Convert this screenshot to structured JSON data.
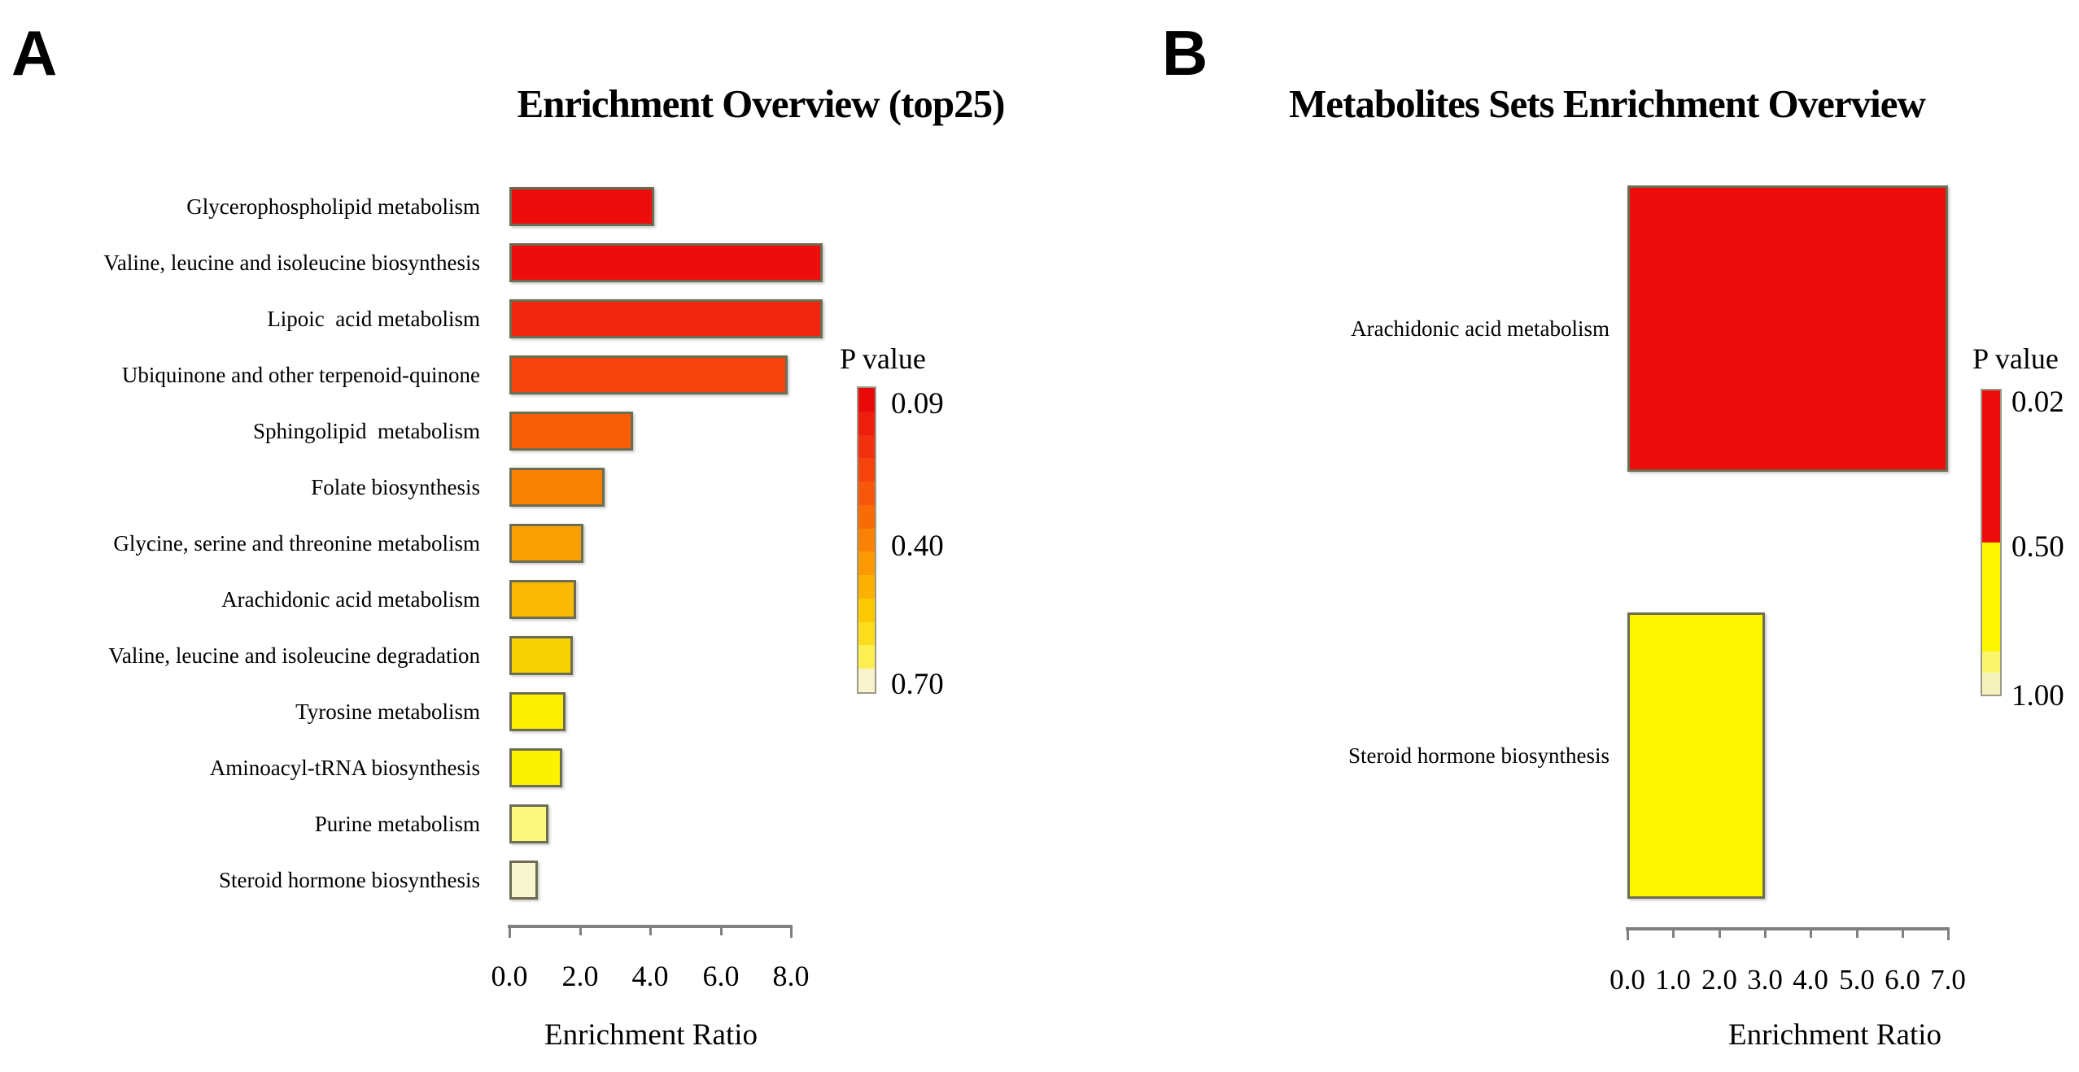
{
  "panels": [
    {
      "letter": "A",
      "title": "Enrichment Overview (top25)",
      "axis": {
        "ticks": [
          "0.0",
          "2.0",
          "4.0",
          "6.0",
          "8.0"
        ],
        "label": "Enrichment Ratio",
        "max": 8
      },
      "legend": {
        "title": "P value",
        "labels": [
          "0.09",
          "0.40",
          "0.70"
        ],
        "band_colors": [
          "#e80a0b",
          "#ee1d0d",
          "#f1300f",
          "#f4430d",
          "#f6570b",
          "#f86c08",
          "#f98206",
          "#fa9904",
          "#fbb004",
          "#fcc903",
          "#fcdd1e",
          "#fdef52",
          "#f8f3cd"
        ]
      },
      "bars": [
        {
          "label": "Glycerophospholipid metabolism",
          "value": 4.1,
          "color": "#ee0d0d"
        },
        {
          "label": "Valine, leucine and isoleucine biosynthesis",
          "value": 8.9,
          "color": "#ee0d0d"
        },
        {
          "label": "Lipoic  acid metabolism",
          "value": 8.9,
          "color": "#f0260f"
        },
        {
          "label": "Ubiquinone and other terpenoid-quinone",
          "value": 7.9,
          "color": "#f6420b"
        },
        {
          "label": "Sphingolipid  metabolism",
          "value": 3.5,
          "color": "#f75e08"
        },
        {
          "label": "Folate biosynthesis",
          "value": 2.7,
          "color": "#f98205"
        },
        {
          "label": "Glycine, serine and threonine metabolism",
          "value": 2.1,
          "color": "#f9a104"
        },
        {
          "label": "Arachidonic acid metabolism",
          "value": 1.9,
          "color": "#fab902"
        },
        {
          "label": "Valine, leucine and isoleucine degradation",
          "value": 1.8,
          "color": "#f8d303"
        },
        {
          "label": "Tyrosine metabolism",
          "value": 1.6,
          "color": "#fcf000"
        },
        {
          "label": "Aminoacyl-tRNA biosynthesis",
          "value": 1.5,
          "color": "#fbf201"
        },
        {
          "label": "Purine metabolism",
          "value": 1.1,
          "color": "#fbf87d"
        },
        {
          "label": "Steroid hormone biosynthesis",
          "value": 0.8,
          "color": "#f8f6cf"
        }
      ]
    },
    {
      "letter": "B",
      "title": "Metabolites Sets Enrichment Overview",
      "axis": {
        "ticks": [
          "0.0",
          "1.0",
          "2.0",
          "3.0",
          "4.0",
          "5.0",
          "6.0",
          "7.0"
        ],
        "label": "Enrichment Ratio",
        "max": 7
      },
      "legend": {
        "title": "P value",
        "labels": [
          "0.02",
          "0.50",
          "1.00"
        ],
        "band_colors": [
          "#ee0d0d",
          "#ee0d0d",
          "#ee0d0d",
          "#ee0d0d",
          "#ee0d0d",
          "#ee0d0d",
          "#ee0d0d",
          "#fcf400",
          "#fcf400",
          "#fcf400",
          "#fcf400",
          "#fcf400",
          "#fbf66e",
          "#f6f2bb"
        ]
      },
      "bars": [
        {
          "label": "Arachidonic acid metabolism",
          "value": 7.0,
          "color": "#ee0d0d"
        },
        {
          "label": "Steroid hormone biosynthesis",
          "value": 3.0,
          "color": "#fcf400"
        }
      ]
    }
  ],
  "chart_data": [
    {
      "type": "bar",
      "orientation": "horizontal",
      "title": "Enrichment Overview (top25)",
      "xlabel": "Enrichment Ratio",
      "xlim": [
        0.0,
        8.0
      ],
      "x_ticks": [
        0.0,
        2.0,
        4.0,
        6.0,
        8.0
      ],
      "grid": false,
      "colorbar": {
        "title": "P value",
        "ticks": [
          0.09,
          0.4,
          0.7
        ],
        "top_color": "#e80a0b",
        "bottom_color": "#f8f3cd"
      },
      "categories": [
        "Glycerophospholipid metabolism",
        "Valine, leucine and isoleucine biosynthesis",
        "Lipoic  acid metabolism",
        "Ubiquinone and other terpenoid-quinone",
        "Sphingolipid  metabolism",
        "Folate biosynthesis",
        "Glycine, serine and threonine metabolism",
        "Arachidonic acid metabolism",
        "Valine, leucine and isoleucine degradation",
        "Tyrosine metabolism",
        "Aminoacyl-tRNA biosynthesis",
        "Purine metabolism",
        "Steroid hormone biosynthesis"
      ],
      "values": [
        4.1,
        8.9,
        8.9,
        7.9,
        3.5,
        2.7,
        2.1,
        1.9,
        1.8,
        1.6,
        1.5,
        1.1,
        0.8
      ],
      "bar_colors": [
        "#ee0d0d",
        "#ee0d0d",
        "#f0260f",
        "#f6420b",
        "#f75e08",
        "#f98205",
        "#f9a104",
        "#fab902",
        "#f8d303",
        "#fcf000",
        "#fbf201",
        "#fbf87d",
        "#f8f6cf"
      ]
    },
    {
      "type": "bar",
      "orientation": "horizontal",
      "title": "Metabolites Sets Enrichment Overview",
      "xlabel": "Enrichment Ratio",
      "xlim": [
        0.0,
        7.0
      ],
      "x_ticks": [
        0.0,
        1.0,
        2.0,
        3.0,
        4.0,
        5.0,
        6.0,
        7.0
      ],
      "grid": false,
      "colorbar": {
        "title": "P value",
        "ticks": [
          0.02,
          0.5,
          1.0
        ],
        "top_color": "#ee0d0d",
        "bottom_color": "#f6f2bb"
      },
      "categories": [
        "Arachidonic acid metabolism",
        "Steroid hormone biosynthesis"
      ],
      "values": [
        7.0,
        3.0
      ],
      "bar_colors": [
        "#ee0d0d",
        "#fcf400"
      ]
    }
  ]
}
